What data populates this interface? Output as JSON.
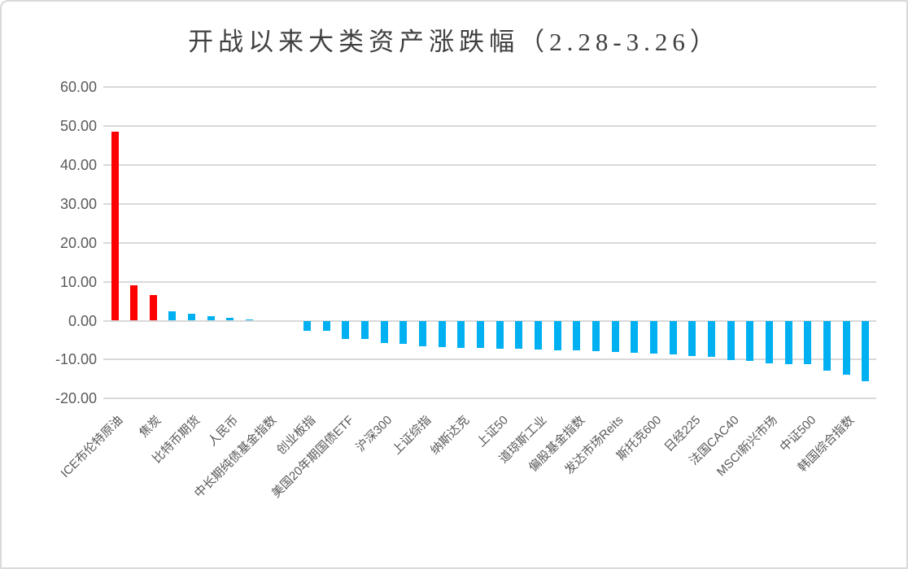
{
  "colors": {
    "up_accent": "#ff0000",
    "down_accent": "#00b0f0",
    "gridline": "#d9d9d9",
    "axis_text": "#595959",
    "title_text": "#404040",
    "frame_border": "#d9d9d9"
  },
  "chart_data": {
    "type": "bar",
    "title": "开战以来大类资产涨跌幅（2.28-3.26）",
    "xlabel": "",
    "ylabel": "",
    "ylim": [
      -20,
      60
    ],
    "grid": true,
    "legend": false,
    "label_interval_note": "category labels are displayed under every other bar",
    "ytick_labels": [
      "60.00",
      "50.00",
      "40.00",
      "30.00",
      "20.00",
      "10.00",
      "0.00",
      "-10.00",
      "-20.00"
    ],
    "yticks": [
      60,
      50,
      40,
      30,
      20,
      10,
      0,
      -10,
      -20
    ],
    "bars": [
      {
        "label": "ICE布伦特原油",
        "value": 48.5,
        "color": "#ff0000"
      },
      {
        "label": "",
        "value": 9.0,
        "color": "#ff0000"
      },
      {
        "label": "焦炭",
        "value": 6.5,
        "color": "#ff0000"
      },
      {
        "label": "",
        "value": 2.3,
        "color": "#00b0f0"
      },
      {
        "label": "比特币期货",
        "value": 1.7,
        "color": "#00b0f0"
      },
      {
        "label": "",
        "value": 1.2,
        "color": "#00b0f0"
      },
      {
        "label": "人民币",
        "value": 0.8,
        "color": "#00b0f0"
      },
      {
        "label": "",
        "value": 0.3,
        "color": "#00b0f0"
      },
      {
        "label": "中长期纯债基金指数",
        "value": 0.0,
        "color": "#00b0f0"
      },
      {
        "label": "",
        "value": 0.0,
        "color": "#00b0f0"
      },
      {
        "label": "创业板指",
        "value": -2.6,
        "color": "#00b0f0"
      },
      {
        "label": "",
        "value": -2.7,
        "color": "#00b0f0"
      },
      {
        "label": "美国20年期国债ETF",
        "value": -4.6,
        "color": "#00b0f0"
      },
      {
        "label": "",
        "value": -4.8,
        "color": "#00b0f0"
      },
      {
        "label": "沪深300",
        "value": -5.7,
        "color": "#00b0f0"
      },
      {
        "label": "",
        "value": -6.0,
        "color": "#00b0f0"
      },
      {
        "label": "上证综指",
        "value": -6.5,
        "color": "#00b0f0"
      },
      {
        "label": "",
        "value": -6.7,
        "color": "#00b0f0"
      },
      {
        "label": "纳斯达克",
        "value": -6.9,
        "color": "#00b0f0"
      },
      {
        "label": "",
        "value": -7.0,
        "color": "#00b0f0"
      },
      {
        "label": "上证50",
        "value": -7.2,
        "color": "#00b0f0"
      },
      {
        "label": "",
        "value": -7.3,
        "color": "#00b0f0"
      },
      {
        "label": "道琼斯工业",
        "value": -7.5,
        "color": "#00b0f0"
      },
      {
        "label": "",
        "value": -7.6,
        "color": "#00b0f0"
      },
      {
        "label": "偏股基金指数",
        "value": -7.7,
        "color": "#00b0f0"
      },
      {
        "label": "",
        "value": -7.8,
        "color": "#00b0f0"
      },
      {
        "label": "发达市场Reits",
        "value": -8.0,
        "color": "#00b0f0"
      },
      {
        "label": "",
        "value": -8.2,
        "color": "#00b0f0"
      },
      {
        "label": "斯托克600",
        "value": -8.4,
        "color": "#00b0f0"
      },
      {
        "label": "",
        "value": -8.7,
        "color": "#00b0f0"
      },
      {
        "label": "日经225",
        "value": -9.0,
        "color": "#00b0f0"
      },
      {
        "label": "",
        "value": -9.2,
        "color": "#00b0f0"
      },
      {
        "label": "法国CAC40",
        "value": -10.1,
        "color": "#00b0f0"
      },
      {
        "label": "",
        "value": -10.4,
        "color": "#00b0f0"
      },
      {
        "label": "MSCI新兴市场",
        "value": -11.0,
        "color": "#00b0f0"
      },
      {
        "label": "",
        "value": -11.1,
        "color": "#00b0f0"
      },
      {
        "label": "中证500",
        "value": -11.2,
        "color": "#00b0f0"
      },
      {
        "label": "",
        "value": -12.9,
        "color": "#00b0f0"
      },
      {
        "label": "韩国综合指数",
        "value": -14.0,
        "color": "#00b0f0"
      },
      {
        "label": "",
        "value": -15.6,
        "color": "#00b0f0"
      }
    ]
  }
}
